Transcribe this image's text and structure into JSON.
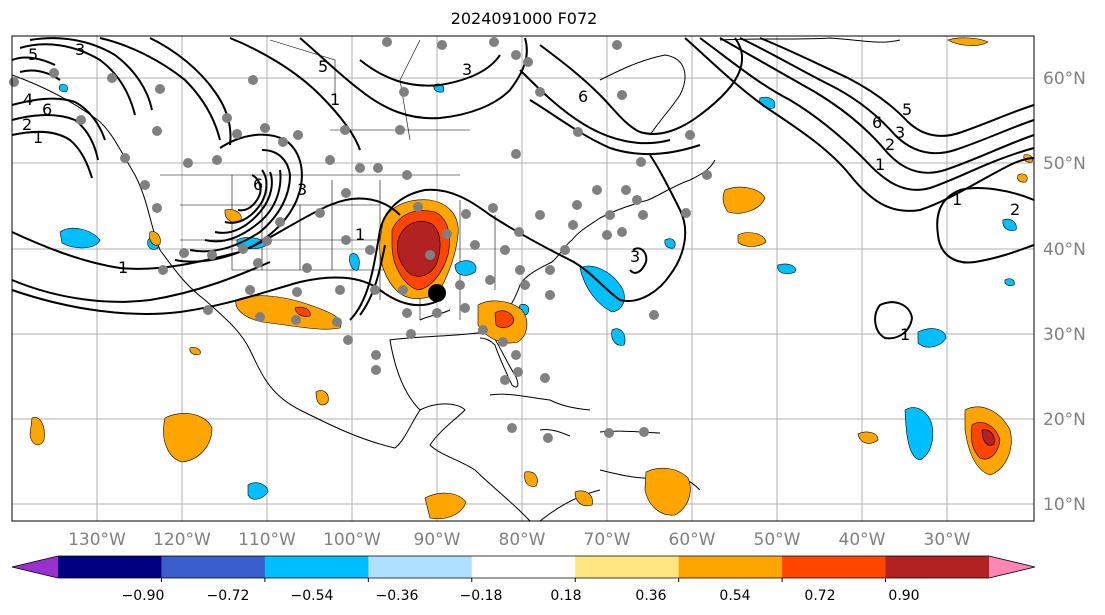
{
  "title": "2024091000 F072",
  "longitude_labels": [
    "130°W",
    "120°W",
    "110°W",
    "100°W",
    "90°W",
    "80°W",
    "70°W",
    "60°W",
    "50°W",
    "40°W",
    "30°W"
  ],
  "latitude_labels": [
    "60°N",
    "50°N",
    "40°N",
    "30°N",
    "20°N",
    "10°N"
  ],
  "colorbar": {
    "ticks": [
      "−0.90",
      "−0.72",
      "−0.54",
      "−0.36",
      "−0.18",
      "0.18",
      "0.36",
      "0.54",
      "0.72",
      "0.90"
    ],
    "colors": [
      "#9b30d0",
      "#000080",
      "#3a5fcd",
      "#00bfff",
      "#b0e0ff",
      "#ffffff",
      "#ffe680",
      "#ffa500",
      "#ff4500",
      "#b22222",
      "#ff85b4"
    ]
  },
  "contour_labels": [
    "1",
    "3",
    "5",
    "6",
    "1",
    "2",
    "4",
    "6",
    "3",
    "1",
    "1",
    "3",
    "5",
    "6",
    "1",
    "2",
    "3",
    "5",
    "6",
    "1",
    "2",
    "1",
    "3"
  ],
  "colors": {
    "negative": "#00bfff",
    "positive": "#ffa500",
    "strong_positive": "#ff4500",
    "max_positive": "#b22222",
    "markers": "#808080"
  }
}
